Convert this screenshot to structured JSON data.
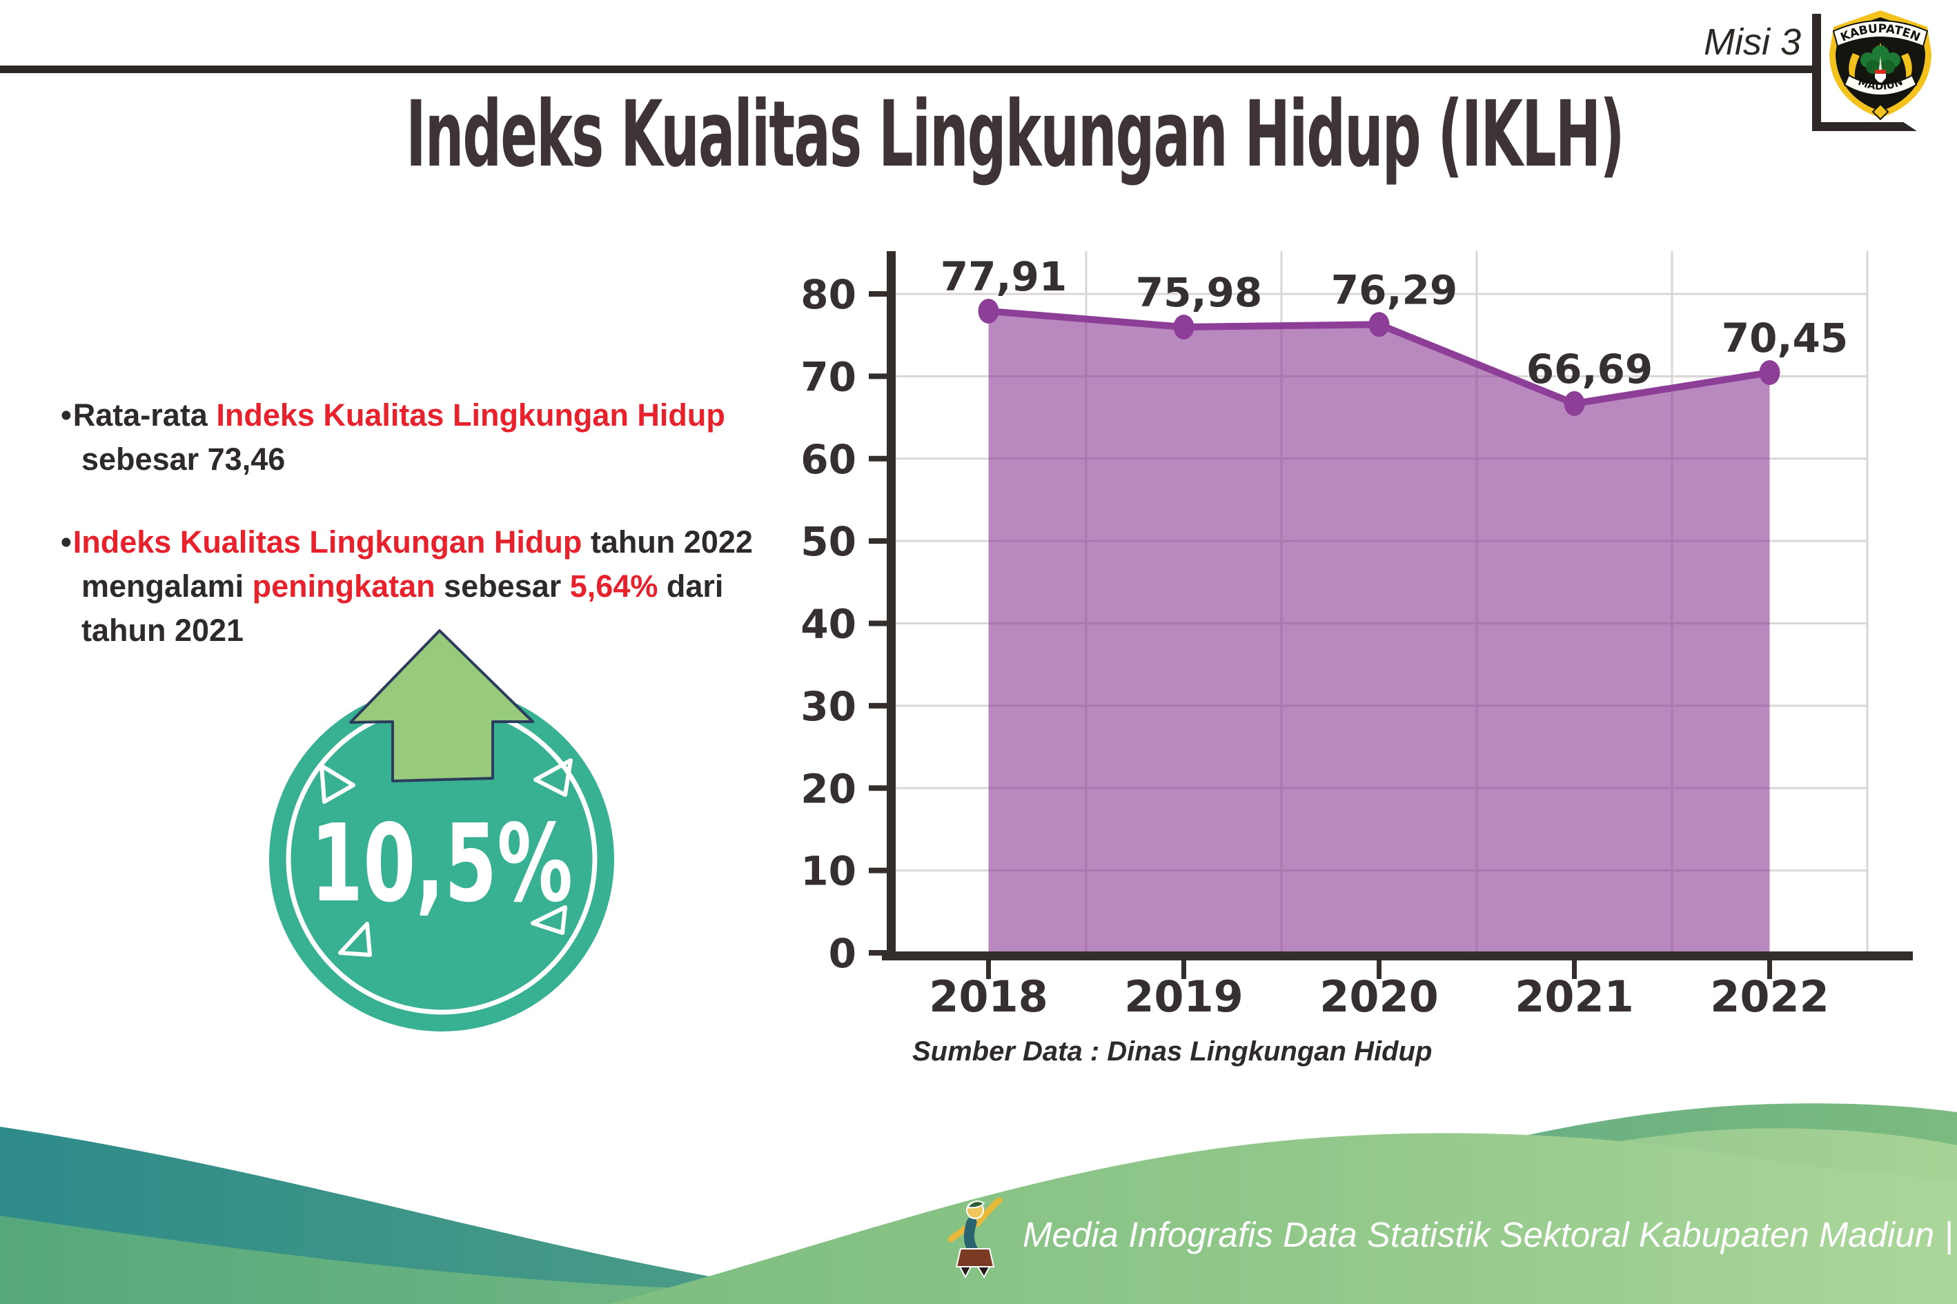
{
  "header": {
    "misi_label": "Misi 3",
    "title": "Indeks Kualitas Lingkungan Hidup (IKLH)"
  },
  "logo": {
    "top_text": "KABUPATEN",
    "bottom_text": "MADIUN"
  },
  "bullets": [
    {
      "segments": [
        {
          "text": "Rata-rata ",
          "color": "dark"
        },
        {
          "text": "Indeks Kualitas Lingkungan Hidup",
          "color": "red"
        },
        {
          "text": " sebesar 73,46",
          "color": "dark"
        }
      ]
    },
    {
      "segments": [
        {
          "text": "Indeks Kualitas Lingkungan Hidup",
          "color": "red"
        },
        {
          "text": " tahun 2022 mengalami ",
          "color": "dark"
        },
        {
          "text": "peningkatan",
          "color": "red"
        },
        {
          "text": " sebesar ",
          "color": "dark"
        },
        {
          "text": "5,64%",
          "color": "red"
        },
        {
          "text": " dari tahun 2021",
          "color": "dark"
        }
      ]
    }
  ],
  "badge": {
    "value": "10,5%",
    "circle_color": "#38b092",
    "arrow_color": "#97ca7b"
  },
  "chart_data": {
    "type": "area",
    "title": "",
    "categories": [
      "2018",
      "2019",
      "2020",
      "2021",
      "2022"
    ],
    "values": [
      77.91,
      75.98,
      76.29,
      66.69,
      70.45
    ],
    "value_labels": [
      "77,91",
      "75,98",
      "76,29",
      "66,69",
      "70,45"
    ],
    "xlabel": "",
    "ylabel": "",
    "ylim": [
      0,
      80
    ],
    "ytick_step": 10,
    "grid": true,
    "legend": "none",
    "colors": {
      "line": "#8d3f98",
      "fill": "#8d3f98",
      "fill_opacity": 0.62,
      "grid": "#dad6d6",
      "axis": "#332d2c",
      "text": "#362f31"
    },
    "source": "Sumber Data : Dinas Lingkungan Hidup"
  },
  "footer": {
    "text": "Media Infografis Data Statistik Sektoral Kabupaten Madiun |"
  }
}
